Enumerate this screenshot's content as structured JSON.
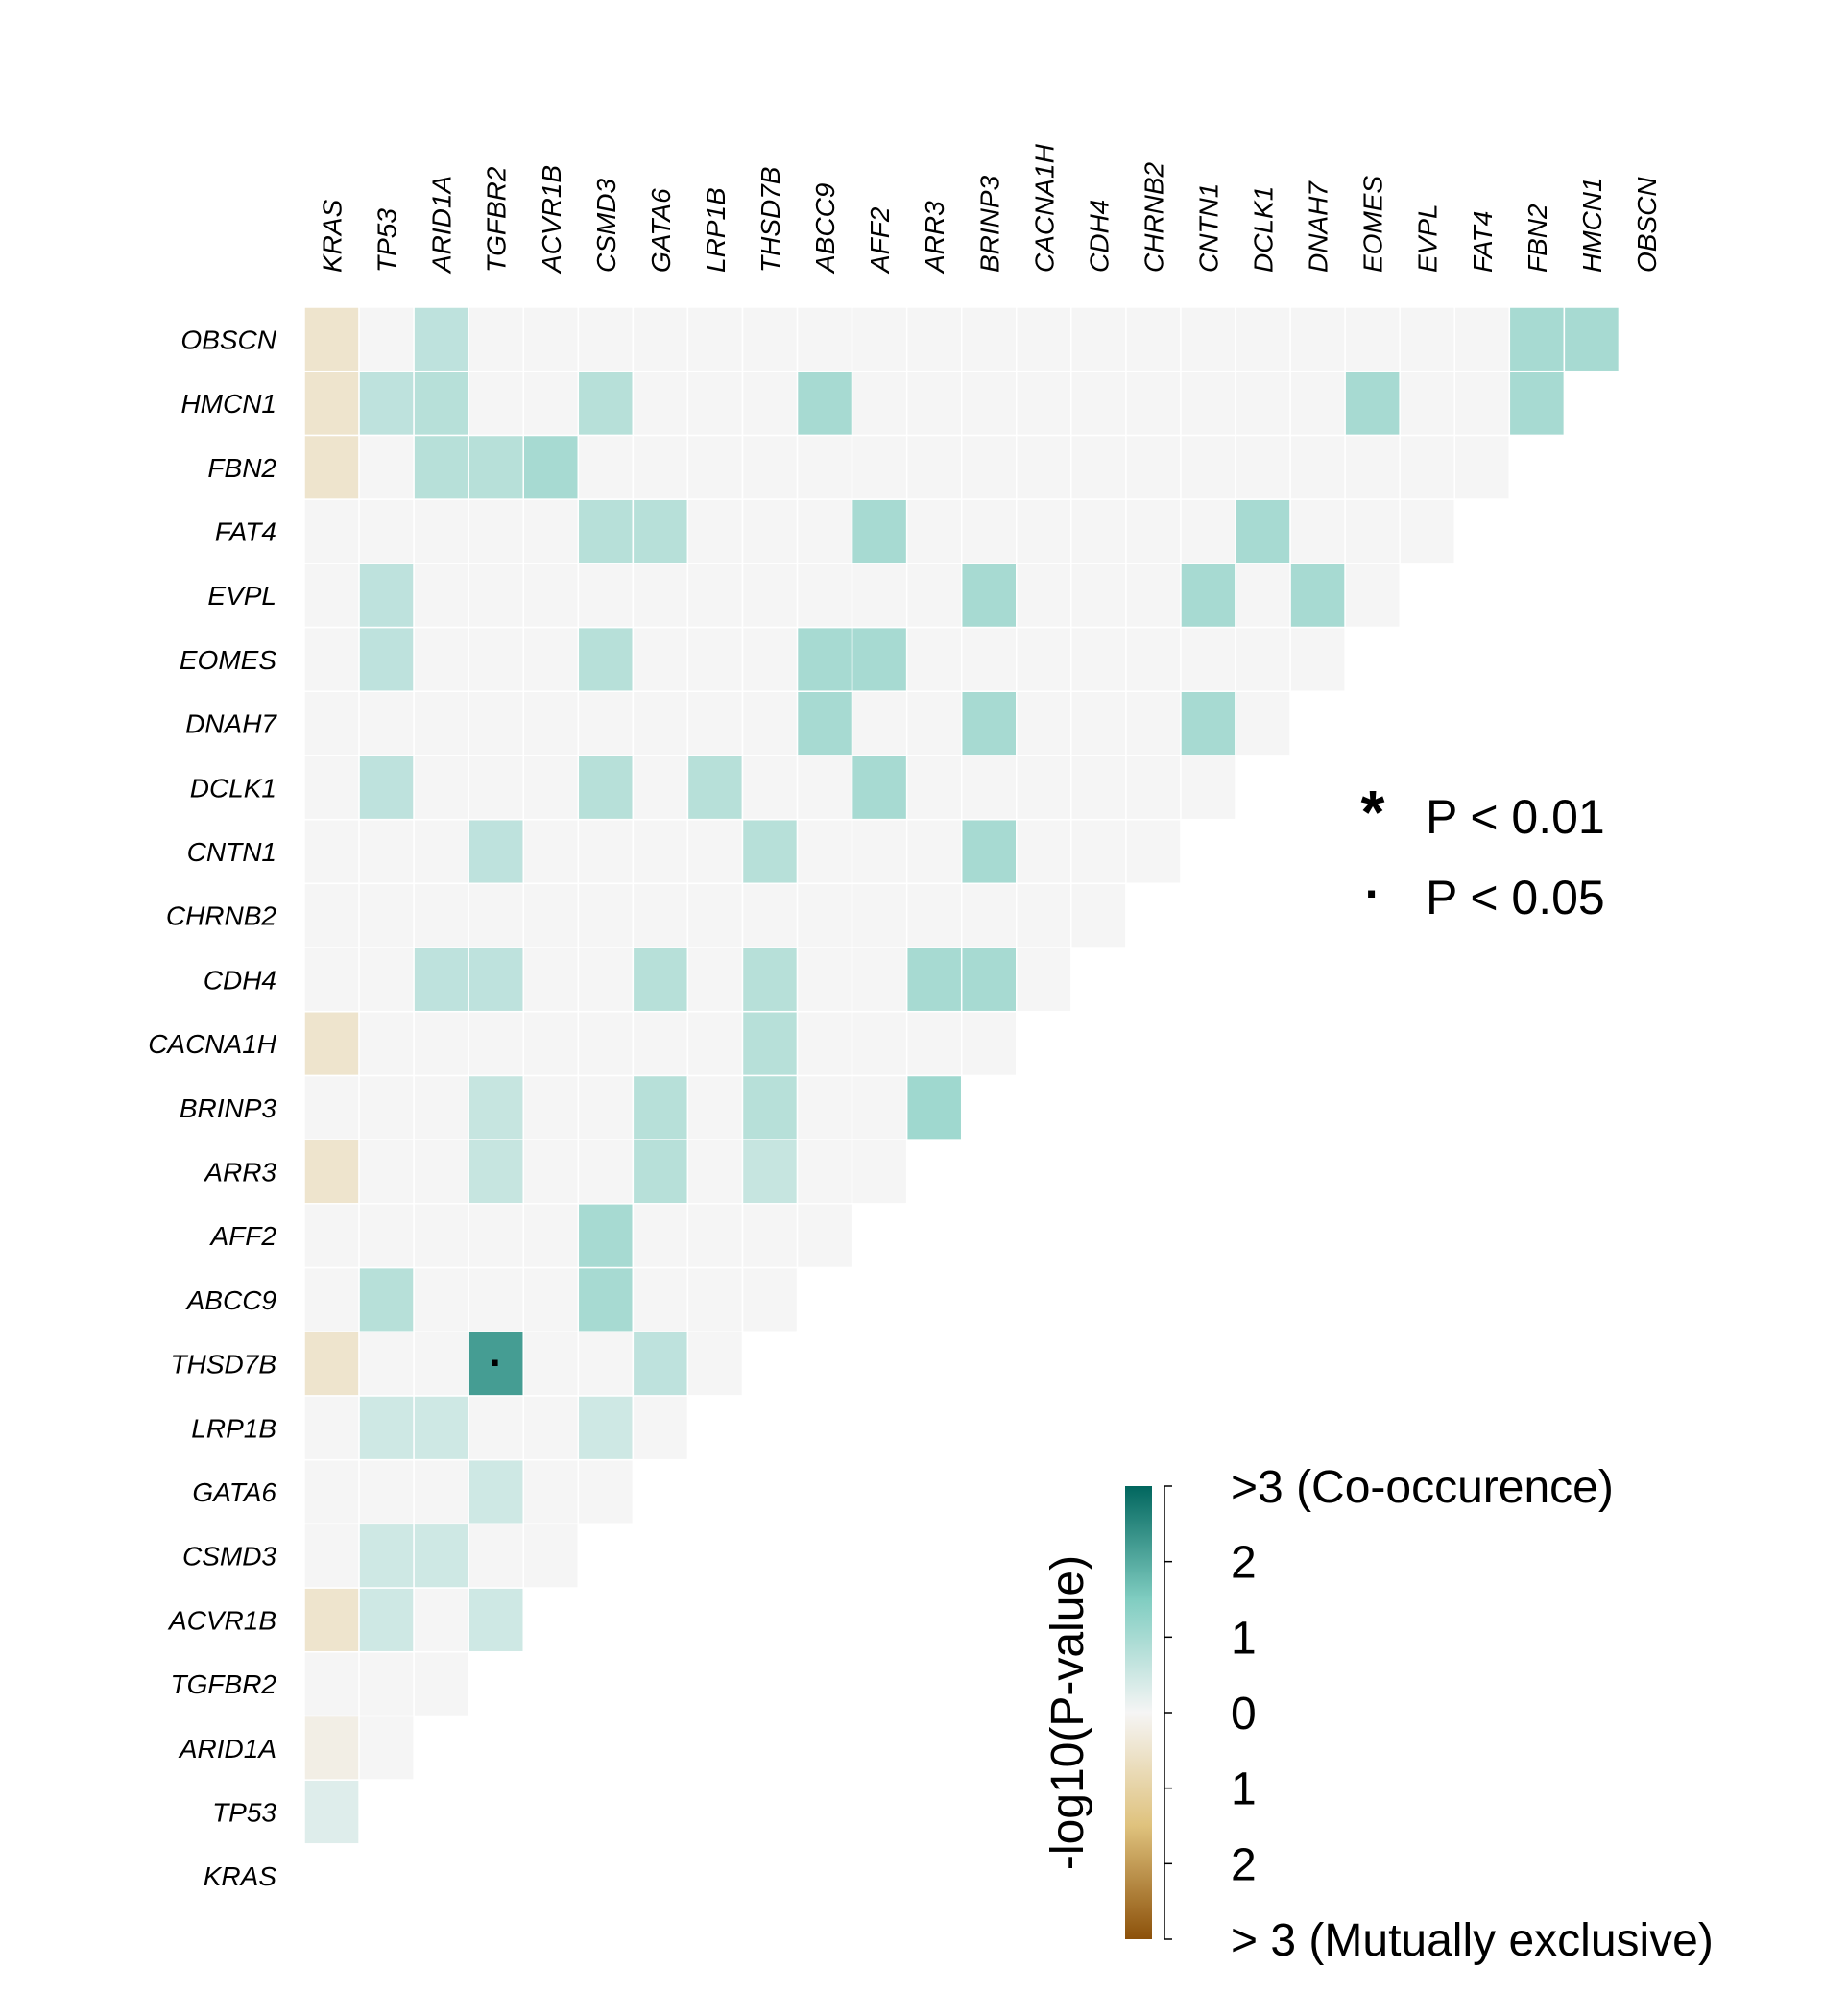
{
  "chart_data": {
    "type": "heatmap",
    "layout": "lower-triangle",
    "genes": [
      "KRAS",
      "TP53",
      "ARID1A",
      "TGFBR2",
      "ACVR1B",
      "CSMD3",
      "GATA6",
      "LRP1B",
      "THSD7B",
      "ABCC9",
      "AFF2",
      "ARR3",
      "BRINP3",
      "CACNA1H",
      "CDH4",
      "CHRNB2",
      "CNTN1",
      "DCLK1",
      "DNAH7",
      "EOMES",
      "EVPL",
      "FAT4",
      "FBN2",
      "HMCN1",
      "OBSCN"
    ],
    "value_note": "positive = co-occurrence, negative = mutual exclusivity (-log10 P)",
    "cells": {
      "TP53": [
        0.3
      ],
      "ARID1A": [
        -0.2,
        0
      ],
      "TGFBR2": [
        0,
        0,
        0
      ],
      "ACVR1B": [
        -0.5,
        0.5,
        0,
        0.5
      ],
      "CSMD3": [
        0,
        0.5,
        0.5,
        0,
        0
      ],
      "GATA6": [
        0,
        0,
        0,
        0.5,
        0,
        0
      ],
      "LRP1B": [
        0,
        0.5,
        0.5,
        0,
        0,
        0.5,
        0
      ],
      "THSD7B": [
        -0.5,
        0,
        0,
        2.2,
        0,
        0,
        0.7,
        0
      ],
      "ABCC9": [
        0,
        0.8,
        0,
        0,
        0,
        1,
        0,
        0,
        0
      ],
      "AFF2": [
        0,
        0,
        0,
        0,
        0,
        1,
        0,
        0,
        0,
        0
      ],
      "ARR3": [
        -0.5,
        0,
        0,
        0.6,
        0,
        0,
        0.8,
        0,
        0.6,
        0,
        0
      ],
      "BRINP3": [
        0,
        0,
        0,
        0.6,
        0,
        0,
        0.8,
        0,
        0.8,
        0,
        0,
        1.1
      ],
      "CACNA1H": [
        -0.5,
        0,
        0,
        0,
        0,
        0,
        0,
        0,
        0.8,
        0,
        0,
        0,
        0
      ],
      "CDH4": [
        0,
        0,
        0.7,
        0.7,
        0,
        0,
        0.8,
        0,
        0.8,
        0,
        0,
        1,
        1,
        0
      ],
      "CHRNB2": [
        0,
        0,
        0,
        0,
        0,
        0,
        0,
        0,
        0,
        0,
        0,
        0,
        0,
        0,
        0
      ],
      "CNTN1": [
        0,
        0,
        0,
        0.7,
        0,
        0,
        0,
        0,
        0.8,
        0,
        0,
        0,
        1,
        0,
        0,
        0
      ],
      "DCLK1": [
        0,
        0.7,
        0,
        0,
        0,
        0.8,
        0,
        0.8,
        0,
        0,
        1,
        0,
        0,
        0,
        0,
        0,
        0
      ],
      "DNAH7": [
        0,
        0,
        0,
        0,
        0,
        0,
        0,
        0,
        0,
        1,
        0,
        0,
        1,
        0,
        0,
        0,
        1,
        0
      ],
      "EOMES": [
        0,
        0.7,
        0,
        0,
        0,
        0.8,
        0,
        0,
        0,
        1,
        1,
        0,
        0,
        0,
        0,
        0,
        0,
        0,
        0
      ],
      "EVPL": [
        0,
        0.7,
        0,
        0,
        0,
        0,
        0,
        0,
        0,
        0,
        0,
        0,
        1,
        0,
        0,
        0,
        1,
        0,
        1,
        0
      ],
      "FAT4": [
        0,
        0,
        0,
        0,
        0,
        0.8,
        0.8,
        0,
        0,
        0,
        1,
        0,
        0,
        0,
        0,
        0,
        0,
        1,
        0,
        0,
        0
      ],
      "FBN2": [
        -0.5,
        0,
        0.8,
        0.8,
        1,
        0,
        0,
        0,
        0,
        0,
        0,
        0,
        0,
        0,
        0,
        0,
        0,
        0,
        0,
        0,
        0,
        0
      ],
      "HMCN1": [
        -0.5,
        0.7,
        0.8,
        0,
        0,
        0.8,
        0,
        0,
        0,
        1,
        0,
        0,
        0,
        0,
        0,
        0,
        0,
        0,
        0,
        1,
        0,
        0,
        1
      ],
      "OBSCN": [
        -0.5,
        0,
        0.7,
        0,
        0,
        0,
        0,
        0,
        0,
        0,
        0,
        0,
        0,
        0,
        0,
        0,
        0,
        0,
        0,
        0,
        0,
        0,
        1,
        1
      ]
    },
    "significance": [
      {
        "row": "THSD7B",
        "col": "TGFBR2",
        "mark": "·"
      }
    ],
    "legend": {
      "items": [
        {
          "symbol": "*",
          "label": "P < 0.01"
        },
        {
          "symbol": "·",
          "label": "P < 0.05"
        }
      ]
    },
    "colorbar": {
      "title": "-log10(P-value)",
      "range": [
        -3,
        3
      ],
      "ticks": [
        {
          "value": 3,
          "label": ">3 (Co-occurence)"
        },
        {
          "value": 2,
          "label": "2"
        },
        {
          "value": 1,
          "label": "1"
        },
        {
          "value": 0,
          "label": "0"
        },
        {
          "value": -1,
          "label": "1"
        },
        {
          "value": -2,
          "label": "2"
        },
        {
          "value": -3,
          "label": "> 3 (Mutually exclusive)"
        }
      ],
      "colors": {
        "cooccurrence_high": "#01665e",
        "cooccurrence_mid": "#80cdc1",
        "neutral": "#f5f5f5",
        "exclusive_mid": "#dfc27d",
        "exclusive_high": "#8c510a"
      }
    }
  }
}
